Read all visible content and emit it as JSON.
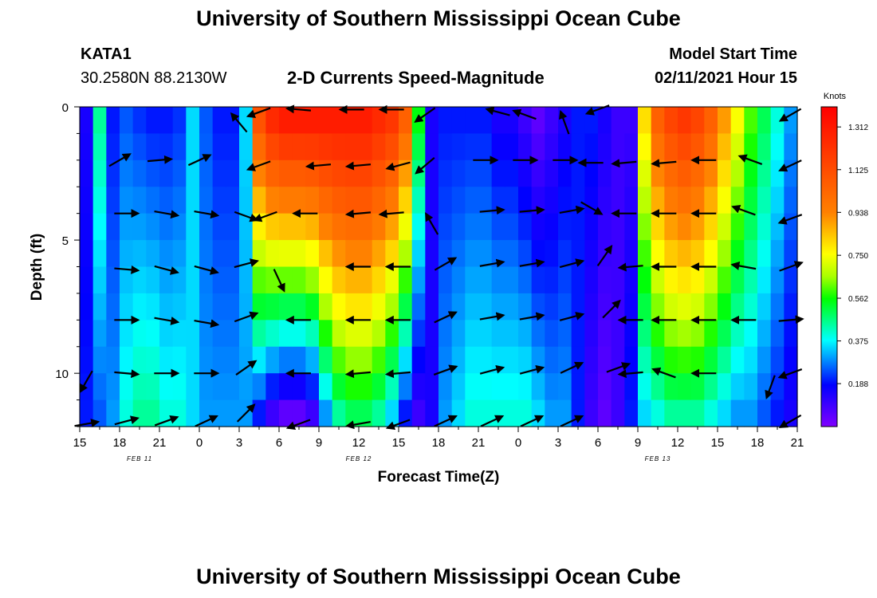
{
  "header": {
    "title_top": "University of Southern Mississippi Ocean Cube",
    "title_bottom": "University of Southern Mississippi Ocean Cube",
    "station_id": "KATA1",
    "station_coords": "30.2580N 88.2130W",
    "chart_title": "2-D Currents Speed-Magnitude",
    "model_label": "Model Start Time",
    "model_time": "02/11/2021 Hour 15"
  },
  "chart_data": {
    "type": "heatmap",
    "title": "2-D Currents Speed-Magnitude",
    "xlabel": "Forecast Time(Z)",
    "ylabel": "Depth (ft)",
    "x_tick_labels": [
      "15",
      "18",
      "21",
      "0",
      "3",
      "6",
      "9",
      "12",
      "15",
      "18",
      "21",
      "0",
      "3",
      "6",
      "9",
      "12",
      "15",
      "18",
      "21"
    ],
    "x_hours_from_start": [
      0,
      3,
      6,
      9,
      12,
      15,
      18,
      21,
      24,
      27,
      30,
      33,
      36,
      39,
      42,
      45,
      48,
      51,
      54
    ],
    "date_labels": [
      {
        "text": "FEB 11",
        "hour": 4.5
      },
      {
        "text": "FEB 12",
        "hour": 21
      },
      {
        "text": "FEB 13",
        "hour": 43.5
      }
    ],
    "y_tick_labels": [
      "0",
      "5",
      "10"
    ],
    "y_tick_values": [
      0,
      5,
      10
    ],
    "ylim": [
      0,
      12
    ],
    "xlim": [
      0,
      54
    ],
    "colorbar": {
      "label": "Knots",
      "tick_labels": [
        "1.312",
        "1.125",
        "0.938",
        "0.750",
        "0.562",
        "0.375",
        "0.188"
      ],
      "tick_values": [
        1.312,
        1.125,
        0.938,
        0.75,
        0.562,
        0.375,
        0.188
      ],
      "range": [
        0,
        1.4
      ]
    },
    "speed_profile": {
      "hours": [
        0,
        1,
        2,
        3,
        4,
        5,
        6,
        7,
        8,
        9,
        10,
        11,
        12,
        13,
        14,
        15,
        16,
        17,
        18,
        19,
        20,
        21,
        22,
        23,
        24,
        25,
        26,
        27,
        28,
        29,
        30,
        31,
        32,
        33,
        34,
        35,
        36,
        37,
        38,
        39,
        40,
        41,
        42,
        43,
        44,
        45,
        46,
        47,
        48,
        49,
        50,
        51,
        52,
        53,
        54
      ],
      "surface": [
        0.15,
        0.45,
        0.2,
        0.25,
        0.22,
        0.2,
        0.2,
        0.22,
        0.35,
        0.25,
        0.2,
        0.2,
        0.35,
        1.1,
        1.25,
        1.3,
        1.3,
        1.3,
        1.3,
        1.3,
        1.3,
        1.3,
        1.25,
        1.2,
        1.05,
        0.55,
        0.15,
        0.2,
        0.2,
        0.2,
        0.2,
        0.15,
        0.15,
        0.1,
        0.05,
        0.1,
        0.15,
        0.2,
        0.2,
        0.15,
        0.1,
        0.1,
        0.8,
        1.05,
        1.15,
        1.2,
        1.15,
        1.05,
        0.9,
        0.75,
        0.6,
        0.5,
        0.4,
        0.3,
        0.15
      ],
      "bottom": [
        0.2,
        0.25,
        0.3,
        0.4,
        0.45,
        0.45,
        0.4,
        0.4,
        0.35,
        0.3,
        0.3,
        0.3,
        0.3,
        0.2,
        0.1,
        0.05,
        0.05,
        0.1,
        0.3,
        0.45,
        0.5,
        0.5,
        0.45,
        0.35,
        0.2,
        0.1,
        0.15,
        0.3,
        0.35,
        0.4,
        0.4,
        0.4,
        0.4,
        0.4,
        0.35,
        0.3,
        0.3,
        0.2,
        0.1,
        0.05,
        0.1,
        0.2,
        0.35,
        0.4,
        0.45,
        0.45,
        0.45,
        0.4,
        0.35,
        0.3,
        0.3,
        0.25,
        0.2,
        0.15,
        0.1
      ]
    },
    "current_vectors": [
      {
        "hour": 3,
        "depth": 2.0,
        "angle_deg": 30
      },
      {
        "hour": 6,
        "depth": 2.0,
        "angle_deg": 5
      },
      {
        "hour": 9,
        "depth": 2.0,
        "angle_deg": 25
      },
      {
        "hour": 12,
        "depth": 0.6,
        "angle_deg": 130
      },
      {
        "hour": 13.5,
        "depth": 0.2,
        "angle_deg": 200
      },
      {
        "hour": 16.5,
        "depth": 0.1,
        "angle_deg": 175
      },
      {
        "hour": 20.5,
        "depth": 0.1,
        "angle_deg": 180
      },
      {
        "hour": 23.5,
        "depth": 0.1,
        "angle_deg": 180
      },
      {
        "hour": 26,
        "depth": 0.3,
        "angle_deg": 215
      },
      {
        "hour": 31.5,
        "depth": 0.2,
        "angle_deg": 165
      },
      {
        "hour": 33.5,
        "depth": 0.3,
        "angle_deg": 160
      },
      {
        "hour": 36.5,
        "depth": 0.6,
        "angle_deg": 110
      },
      {
        "hour": 39,
        "depth": 0.1,
        "angle_deg": 200
      },
      {
        "hour": 53.5,
        "depth": 0.3,
        "angle_deg": 210
      },
      {
        "hour": 13.5,
        "depth": 2.2,
        "angle_deg": 200
      },
      {
        "hour": 18,
        "depth": 2.2,
        "angle_deg": 185
      },
      {
        "hour": 21,
        "depth": 2.2,
        "angle_deg": 185
      },
      {
        "hour": 24,
        "depth": 2.2,
        "angle_deg": 195
      },
      {
        "hour": 26,
        "depth": 2.2,
        "angle_deg": 220
      },
      {
        "hour": 30.5,
        "depth": 2.0,
        "angle_deg": 0
      },
      {
        "hour": 33.5,
        "depth": 2.0,
        "angle_deg": 0
      },
      {
        "hour": 36.5,
        "depth": 2.0,
        "angle_deg": 0
      },
      {
        "hour": 38.5,
        "depth": 2.1,
        "angle_deg": 180
      },
      {
        "hour": 41,
        "depth": 2.1,
        "angle_deg": 185
      },
      {
        "hour": 44,
        "depth": 2.1,
        "angle_deg": 185
      },
      {
        "hour": 47,
        "depth": 2.0,
        "angle_deg": 180
      },
      {
        "hour": 50.5,
        "depth": 2.0,
        "angle_deg": 160
      },
      {
        "hour": 53.5,
        "depth": 2.2,
        "angle_deg": 205
      },
      {
        "hour": 3.5,
        "depth": 4.0,
        "angle_deg": 0
      },
      {
        "hour": 6.5,
        "depth": 4.0,
        "angle_deg": 350
      },
      {
        "hour": 9.5,
        "depth": 4.0,
        "angle_deg": 350
      },
      {
        "hour": 12.5,
        "depth": 4.1,
        "angle_deg": 340
      },
      {
        "hour": 14,
        "depth": 4.1,
        "angle_deg": 200
      },
      {
        "hour": 17,
        "depth": 4.0,
        "angle_deg": 180
      },
      {
        "hour": 21,
        "depth": 4.0,
        "angle_deg": 185
      },
      {
        "hour": 23.5,
        "depth": 4.0,
        "angle_deg": 185
      },
      {
        "hour": 26.5,
        "depth": 4.4,
        "angle_deg": 120
      },
      {
        "hour": 31,
        "depth": 3.9,
        "angle_deg": 5
      },
      {
        "hour": 34,
        "depth": 3.9,
        "angle_deg": 5
      },
      {
        "hour": 37,
        "depth": 3.9,
        "angle_deg": 10
      },
      {
        "hour": 38.5,
        "depth": 3.8,
        "angle_deg": 330
      },
      {
        "hour": 41,
        "depth": 4.0,
        "angle_deg": 180
      },
      {
        "hour": 44,
        "depth": 4.0,
        "angle_deg": 180
      },
      {
        "hour": 47,
        "depth": 4.0,
        "angle_deg": 180
      },
      {
        "hour": 50,
        "depth": 3.9,
        "angle_deg": 160
      },
      {
        "hour": 53.5,
        "depth": 4.2,
        "angle_deg": 200
      },
      {
        "hour": 3.5,
        "depth": 6.1,
        "angle_deg": 355
      },
      {
        "hour": 6.5,
        "depth": 6.1,
        "angle_deg": 345
      },
      {
        "hour": 9.5,
        "depth": 6.1,
        "angle_deg": 345
      },
      {
        "hour": 12.5,
        "depth": 5.9,
        "angle_deg": 15
      },
      {
        "hour": 15,
        "depth": 6.5,
        "angle_deg": 295
      },
      {
        "hour": 21,
        "depth": 6.0,
        "angle_deg": 180
      },
      {
        "hour": 24,
        "depth": 6.0,
        "angle_deg": 180
      },
      {
        "hour": 27.5,
        "depth": 5.9,
        "angle_deg": 30
      },
      {
        "hour": 31,
        "depth": 5.9,
        "angle_deg": 10
      },
      {
        "hour": 34,
        "depth": 5.9,
        "angle_deg": 10
      },
      {
        "hour": 37,
        "depth": 5.9,
        "angle_deg": 15
      },
      {
        "hour": 39.5,
        "depth": 5.6,
        "angle_deg": 55
      },
      {
        "hour": 41.5,
        "depth": 6.0,
        "angle_deg": 185
      },
      {
        "hour": 44,
        "depth": 6.0,
        "angle_deg": 180
      },
      {
        "hour": 47,
        "depth": 6.0,
        "angle_deg": 180
      },
      {
        "hour": 50,
        "depth": 6.0,
        "angle_deg": 170
      },
      {
        "hour": 53.5,
        "depth": 6.0,
        "angle_deg": 20
      },
      {
        "hour": 3.5,
        "depth": 8.0,
        "angle_deg": 0
      },
      {
        "hour": 6.5,
        "depth": 8.0,
        "angle_deg": 350
      },
      {
        "hour": 9.5,
        "depth": 8.1,
        "angle_deg": 350
      },
      {
        "hour": 12.5,
        "depth": 7.9,
        "angle_deg": 20
      },
      {
        "hour": 16.5,
        "depth": 8.0,
        "angle_deg": 180
      },
      {
        "hour": 21,
        "depth": 8.0,
        "angle_deg": 180
      },
      {
        "hour": 24,
        "depth": 8.0,
        "angle_deg": 180
      },
      {
        "hour": 27.5,
        "depth": 7.9,
        "angle_deg": 25
      },
      {
        "hour": 31,
        "depth": 7.9,
        "angle_deg": 10
      },
      {
        "hour": 34,
        "depth": 7.9,
        "angle_deg": 10
      },
      {
        "hour": 37,
        "depth": 7.9,
        "angle_deg": 15
      },
      {
        "hour": 40,
        "depth": 7.6,
        "angle_deg": 45
      },
      {
        "hour": 41.5,
        "depth": 8.0,
        "angle_deg": 180
      },
      {
        "hour": 44,
        "depth": 8.0,
        "angle_deg": 180
      },
      {
        "hour": 47,
        "depth": 8.0,
        "angle_deg": 180
      },
      {
        "hour": 50,
        "depth": 8.0,
        "angle_deg": 180
      },
      {
        "hour": 53.5,
        "depth": 8.0,
        "angle_deg": 5
      },
      {
        "hour": 3.5,
        "depth": 10.0,
        "angle_deg": 355
      },
      {
        "hour": 6.5,
        "depth": 10.0,
        "angle_deg": 0
      },
      {
        "hour": 9.5,
        "depth": 10.0,
        "angle_deg": 0
      },
      {
        "hour": 12.5,
        "depth": 9.8,
        "angle_deg": 35
      },
      {
        "hour": 16.5,
        "depth": 10.0,
        "angle_deg": 180
      },
      {
        "hour": 21,
        "depth": 10.0,
        "angle_deg": 185
      },
      {
        "hour": 24,
        "depth": 10.0,
        "angle_deg": 185
      },
      {
        "hour": 27.5,
        "depth": 9.9,
        "angle_deg": 20
      },
      {
        "hour": 31,
        "depth": 9.9,
        "angle_deg": 15
      },
      {
        "hour": 34,
        "depth": 9.9,
        "angle_deg": 15
      },
      {
        "hour": 37,
        "depth": 9.8,
        "angle_deg": 25
      },
      {
        "hour": 40.5,
        "depth": 9.8,
        "angle_deg": 20
      },
      {
        "hour": 41.5,
        "depth": 10.0,
        "angle_deg": 185
      },
      {
        "hour": 44,
        "depth": 10.0,
        "angle_deg": 160
      },
      {
        "hour": 47,
        "depth": 10.0,
        "angle_deg": 180
      },
      {
        "hour": 52,
        "depth": 10.5,
        "angle_deg": 250
      },
      {
        "hour": 53.5,
        "depth": 10.0,
        "angle_deg": 200
      },
      {
        "hour": 0.5,
        "depth": 10.3,
        "angle_deg": 240
      },
      {
        "hour": 0.5,
        "depth": 11.9,
        "angle_deg": 10
      },
      {
        "hour": 3.5,
        "depth": 11.8,
        "angle_deg": 15
      },
      {
        "hour": 6.5,
        "depth": 11.8,
        "angle_deg": 20
      },
      {
        "hour": 9.5,
        "depth": 11.8,
        "angle_deg": 25
      },
      {
        "hour": 12.5,
        "depth": 11.5,
        "angle_deg": 45
      },
      {
        "hour": 16.5,
        "depth": 11.9,
        "angle_deg": 200
      },
      {
        "hour": 21,
        "depth": 11.9,
        "angle_deg": 190
      },
      {
        "hour": 24,
        "depth": 11.9,
        "angle_deg": 200
      },
      {
        "hour": 27.5,
        "depth": 11.8,
        "angle_deg": 25
      },
      {
        "hour": 31,
        "depth": 11.8,
        "angle_deg": 25
      },
      {
        "hour": 34,
        "depth": 11.8,
        "angle_deg": 25
      },
      {
        "hour": 37,
        "depth": 11.8,
        "angle_deg": 25
      },
      {
        "hour": 53.5,
        "depth": 11.8,
        "angle_deg": 210
      }
    ]
  }
}
